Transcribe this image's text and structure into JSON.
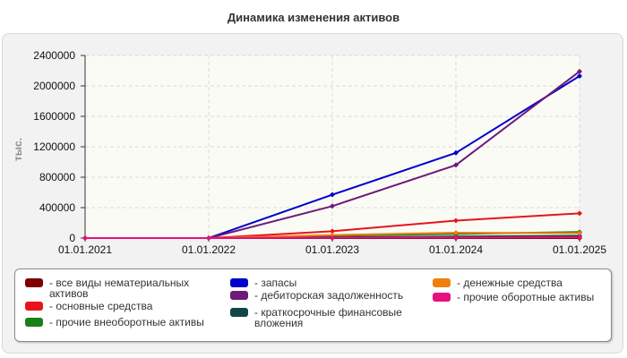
{
  "chart_data": {
    "type": "line",
    "title": "Динамика изменения активов",
    "xlabel": "",
    "ylabel": "тыс.",
    "categories": [
      "01.01.2021",
      "01.01.2022",
      "01.01.2023",
      "01.01.2024",
      "01.01.2025"
    ],
    "yticks": [
      "0",
      "400000",
      "800000",
      "1200000",
      "1600000",
      "2000000",
      "2400000"
    ],
    "ylim": [
      0,
      2400000
    ],
    "grid": true,
    "legend_position": "bottom",
    "series": [
      {
        "name": "- все виды нематериальных активов",
        "color": "#7f0000",
        "values": [
          0,
          0,
          0,
          0,
          0
        ]
      },
      {
        "name": "- основные средства",
        "color": "#e8141b",
        "values": [
          0,
          0,
          90000,
          230000,
          325000
        ]
      },
      {
        "name": "- прочие внеоборотные активы",
        "color": "#1a7f17",
        "values": [
          0,
          0,
          30000,
          55000,
          80000
        ]
      },
      {
        "name": "- запасы",
        "color": "#0000cc",
        "values": [
          0,
          0,
          570000,
          1120000,
          2130000
        ]
      },
      {
        "name": "- дебиторская задолженность",
        "color": "#6e1a78",
        "values": [
          0,
          0,
          420000,
          960000,
          2190000
        ]
      },
      {
        "name": "- краткосрочные финансовые вложения",
        "color": "#0f4747",
        "values": [
          0,
          0,
          10000,
          20000,
          30000
        ]
      },
      {
        "name": "- денежные средства",
        "color": "#f07f0c",
        "values": [
          0,
          0,
          40000,
          70000,
          65000
        ]
      },
      {
        "name": "- прочие оборотные активы",
        "color": "#e80f7e",
        "values": [
          0,
          0,
          5000,
          8000,
          10000
        ]
      }
    ]
  }
}
